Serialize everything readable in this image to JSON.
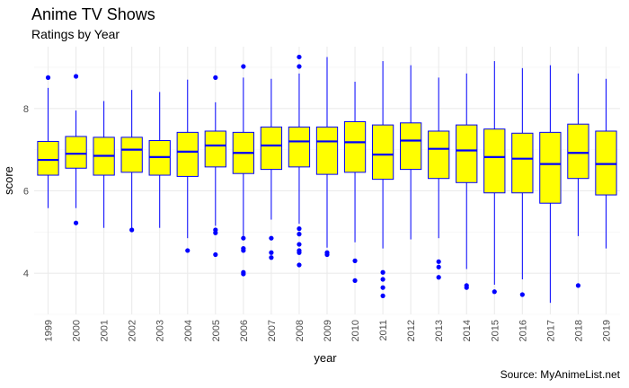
{
  "chart_data": {
    "type": "boxplot",
    "title": "Anime TV Shows",
    "subtitle": "Ratings by Year",
    "caption": "Source: MyAnimeList.net",
    "xlabel": "year",
    "ylabel": "score",
    "ylim": [
      3.0,
      9.5
    ],
    "yticks": [
      4,
      6,
      8
    ],
    "grid": true,
    "colors": {
      "box_fill": "#ffff00",
      "box_stroke": "#0000ff",
      "outlier": "#0000ff",
      "grid": "#ebebeb"
    },
    "boxes": [
      {
        "year": "1999",
        "min": 5.58,
        "q1": 6.38,
        "median": 6.75,
        "q3": 7.2,
        "max": 8.5,
        "outliers": [
          8.75
        ]
      },
      {
        "year": "2000",
        "min": 5.58,
        "q1": 6.55,
        "median": 6.9,
        "q3": 7.32,
        "max": 7.95,
        "outliers": [
          8.78,
          5.22
        ]
      },
      {
        "year": "2001",
        "min": 5.1,
        "q1": 6.38,
        "median": 6.85,
        "q3": 7.3,
        "max": 8.18,
        "outliers": []
      },
      {
        "year": "2002",
        "min": 5.1,
        "q1": 6.45,
        "median": 7.0,
        "q3": 7.3,
        "max": 8.45,
        "outliers": [
          5.05
        ]
      },
      {
        "year": "2003",
        "min": 5.1,
        "q1": 6.38,
        "median": 6.82,
        "q3": 7.22,
        "max": 8.4,
        "outliers": []
      },
      {
        "year": "2004",
        "min": 4.85,
        "q1": 6.35,
        "median": 6.95,
        "q3": 7.42,
        "max": 8.7,
        "outliers": [
          4.55
        ]
      },
      {
        "year": "2005",
        "min": 5.15,
        "q1": 6.58,
        "median": 7.1,
        "q3": 7.45,
        "max": 8.15,
        "outliers": [
          8.75,
          5.05,
          4.98,
          4.45
        ]
      },
      {
        "year": "2006",
        "min": 4.9,
        "q1": 6.42,
        "median": 6.92,
        "q3": 7.42,
        "max": 8.75,
        "outliers": [
          9.02,
          4.85,
          4.6,
          4.55,
          4.02,
          3.98
        ]
      },
      {
        "year": "2007",
        "min": 5.3,
        "q1": 6.52,
        "median": 7.1,
        "q3": 7.55,
        "max": 8.72,
        "outliers": [
          4.85,
          4.5,
          4.38
        ]
      },
      {
        "year": "2008",
        "min": 5.2,
        "q1": 6.58,
        "median": 7.2,
        "q3": 7.55,
        "max": 8.85,
        "outliers": [
          9.25,
          9.02,
          5.08,
          4.95,
          4.7,
          4.55,
          4.5,
          4.2
        ]
      },
      {
        "year": "2009",
        "min": 4.62,
        "q1": 6.4,
        "median": 7.2,
        "q3": 7.55,
        "max": 9.25,
        "outliers": [
          4.5,
          4.45
        ]
      },
      {
        "year": "2010",
        "min": 4.75,
        "q1": 6.45,
        "median": 7.18,
        "q3": 7.68,
        "max": 8.65,
        "outliers": [
          4.3,
          3.82
        ]
      },
      {
        "year": "2011",
        "min": 4.6,
        "q1": 6.28,
        "median": 6.88,
        "q3": 7.6,
        "max": 9.15,
        "outliers": [
          4.02,
          3.85,
          3.65,
          3.45
        ]
      },
      {
        "year": "2012",
        "min": 4.82,
        "q1": 6.52,
        "median": 7.22,
        "q3": 7.65,
        "max": 9.05,
        "outliers": []
      },
      {
        "year": "2013",
        "min": 4.85,
        "q1": 6.3,
        "median": 7.02,
        "q3": 7.45,
        "max": 8.75,
        "outliers": [
          4.28,
          4.15,
          3.9
        ]
      },
      {
        "year": "2014",
        "min": 4.1,
        "q1": 6.2,
        "median": 6.98,
        "q3": 7.6,
        "max": 8.85,
        "outliers": [
          3.7,
          3.65
        ]
      },
      {
        "year": "2015",
        "min": 3.72,
        "q1": 5.95,
        "median": 6.82,
        "q3": 7.5,
        "max": 9.15,
        "outliers": [
          3.55
        ]
      },
      {
        "year": "2016",
        "min": 3.85,
        "q1": 5.95,
        "median": 6.78,
        "q3": 7.4,
        "max": 8.98,
        "outliers": [
          3.48
        ]
      },
      {
        "year": "2017",
        "min": 3.28,
        "q1": 5.7,
        "median": 6.65,
        "q3": 7.42,
        "max": 9.05,
        "outliers": []
      },
      {
        "year": "2018",
        "min": 4.9,
        "q1": 6.3,
        "median": 6.92,
        "q3": 7.62,
        "max": 8.85,
        "outliers": [
          3.7
        ]
      },
      {
        "year": "2019",
        "min": 4.6,
        "q1": 5.9,
        "median": 6.65,
        "q3": 7.45,
        "max": 8.72,
        "outliers": []
      }
    ]
  }
}
